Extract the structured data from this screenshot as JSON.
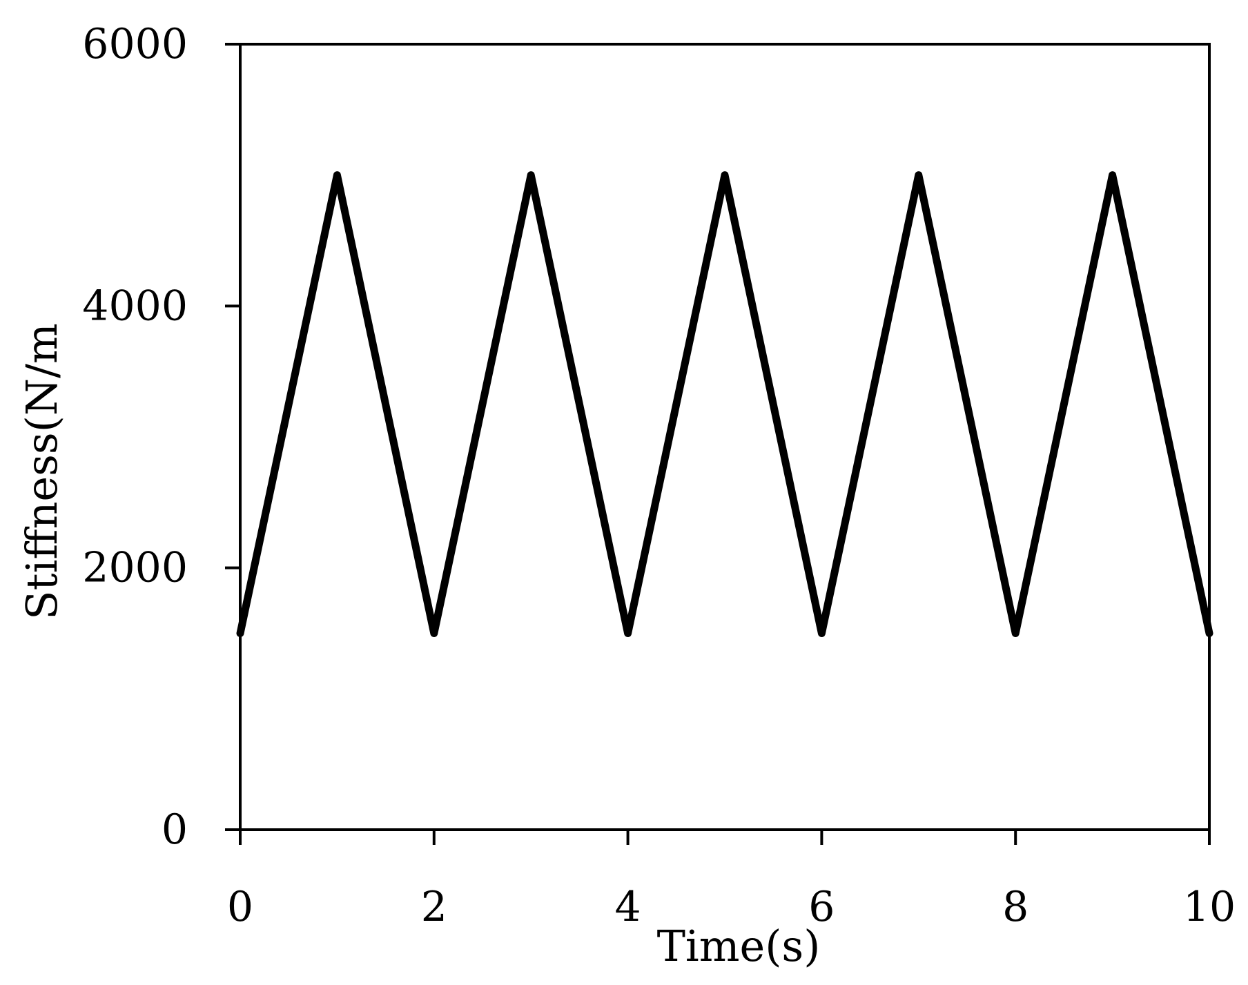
{
  "chart_data": {
    "type": "line",
    "title": "",
    "xlabel": "Time(s)",
    "ylabel": "Stiffness(N/m",
    "xlim": [
      0,
      10
    ],
    "ylim": [
      0,
      6000
    ],
    "x_ticks": [
      0,
      2,
      4,
      6,
      8,
      10
    ],
    "y_ticks": [
      0,
      2000,
      4000,
      6000
    ],
    "x_tick_labels": [
      "0",
      "2",
      "4",
      "6",
      "8",
      "10"
    ],
    "y_tick_labels": [
      "0",
      "2000",
      "4000",
      "6000"
    ],
    "grid": false,
    "legend": "none",
    "line_color": "#000000",
    "series": [
      {
        "x": [
          0,
          1,
          2,
          3,
          4,
          5,
          6,
          7,
          8,
          9,
          10
        ],
        "y": [
          1500,
          5000,
          1500,
          5000,
          1500,
          5000,
          1500,
          5000,
          1500,
          5000,
          1500
        ]
      }
    ]
  }
}
